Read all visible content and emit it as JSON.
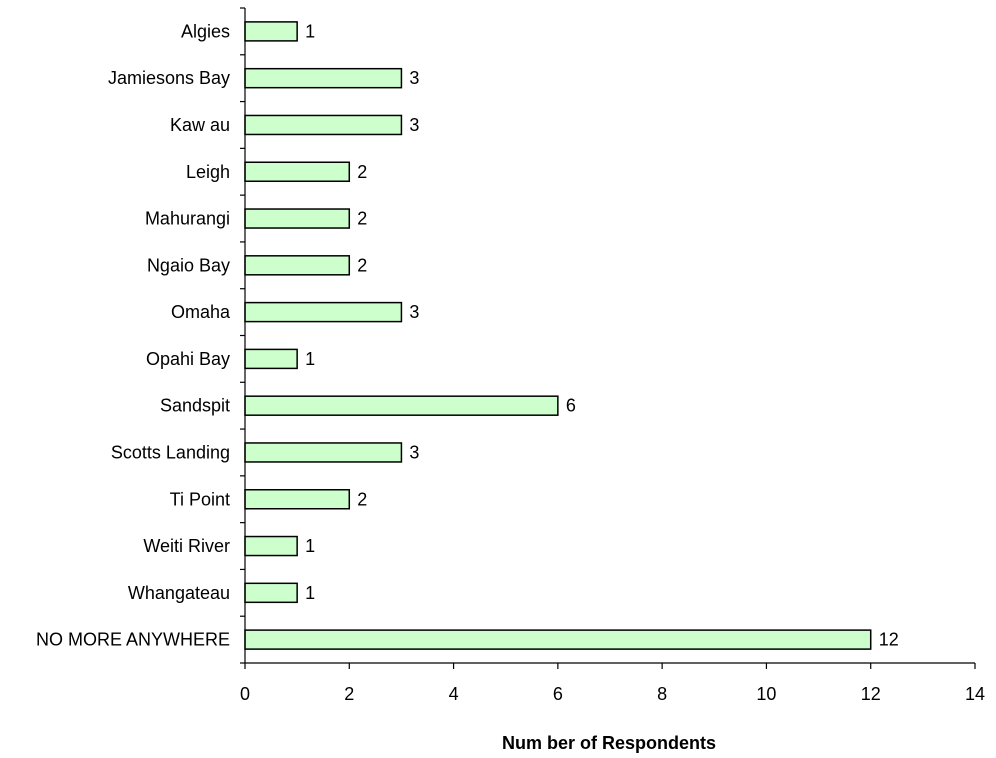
{
  "chart_data": {
    "type": "bar",
    "orientation": "horizontal",
    "categories": [
      "Algies",
      "Jamiesons Bay",
      "Kaw au",
      "Leigh",
      "Mahurangi",
      "Ngaio Bay",
      "Omaha",
      "Opahi Bay",
      "Sandspit",
      "Scotts Landing",
      "Ti Point",
      "Weiti River",
      "Whangateau",
      "NO MORE ANYWHERE"
    ],
    "values": [
      1,
      3,
      3,
      2,
      2,
      2,
      3,
      1,
      6,
      3,
      2,
      1,
      1,
      12
    ],
    "data_labels": [
      "1",
      "3",
      "3",
      "2",
      "2",
      "2",
      "3",
      "1",
      "6",
      "3",
      "2",
      "1",
      "1",
      "12"
    ],
    "xlabel": "Num ber of Respondents",
    "ylabel": "",
    "title": "",
    "xlim": [
      0,
      14
    ],
    "xticks": [
      0,
      2,
      4,
      6,
      8,
      10,
      12,
      14
    ],
    "xtick_labels": [
      "0",
      "2",
      "4",
      "6",
      "8",
      "10",
      "12",
      "14"
    ],
    "grid": false,
    "legend": "none",
    "colors": {
      "bar_fill": "#CCFFCC",
      "bar_stroke": "#000000",
      "axis": "#000000",
      "text": "#000000"
    }
  }
}
